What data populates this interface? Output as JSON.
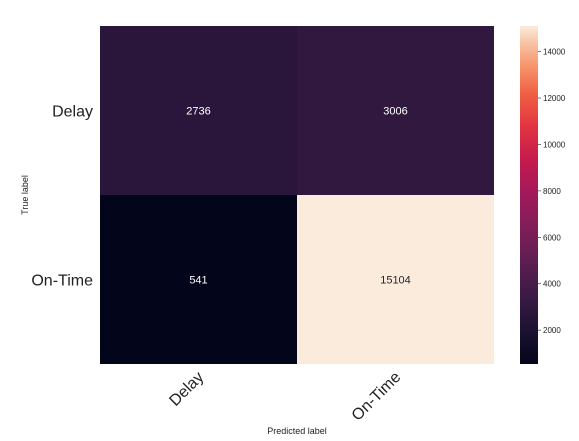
{
  "chart_data": {
    "type": "heatmap",
    "title": "",
    "xlabel": "Predicted label",
    "ylabel": "True label",
    "x_categories": [
      "Delay",
      "On-Time"
    ],
    "y_categories": [
      "Delay",
      "On-Time"
    ],
    "matrix": [
      [
        2736,
        3006
      ],
      [
        541,
        15104
      ]
    ],
    "colorbar": {
      "min": 541,
      "max": 15104,
      "ticks": [
        2000,
        4000,
        6000,
        8000,
        10000,
        12000,
        14000
      ]
    },
    "grid": false,
    "legend": "colorbar-right"
  }
}
